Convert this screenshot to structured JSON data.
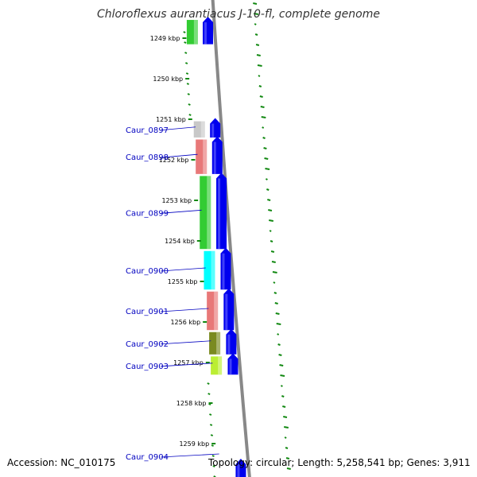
{
  "title": "Chloroflexus aurantiacus J-10-fl, complete genome",
  "accession_text": "Accession: NC_010175",
  "summary_text": "Topology: circular; Length: 5,258,541 bp; Genes: 3,911",
  "colors": {
    "forward_cds": "#0000ee",
    "backbone": "#888888",
    "tick": "#118811",
    "gene_label": "#0000c0",
    "cog_green": "#33cc33",
    "cog_gray": "#c8c8c8",
    "cog_salmon": "#e87878",
    "cog_cyan": "#00ffff",
    "cog_olive": "#7a8a20",
    "cog_yellowgreen": "#bbee33"
  },
  "ticks": [
    {
      "kbp": 1249,
      "label": "1249 kbp"
    },
    {
      "kbp": 1250,
      "label": "1250 kbp"
    },
    {
      "kbp": 1251,
      "label": "1251 kbp"
    },
    {
      "kbp": 1252,
      "label": "1252 kbp"
    },
    {
      "kbp": 1253,
      "label": "1253 kbp"
    },
    {
      "kbp": 1254,
      "label": "1254 kbp"
    },
    {
      "kbp": 1255,
      "label": "1255 kbp"
    },
    {
      "kbp": 1256,
      "label": "1256 kbp"
    },
    {
      "kbp": 1257,
      "label": "1257 kbp"
    },
    {
      "kbp": 1258,
      "label": "1258 kbp"
    },
    {
      "kbp": 1259,
      "label": "1259 kbp"
    }
  ],
  "genes": [
    {
      "label": "",
      "start_kbp": 1248.55,
      "end_kbp": 1249.15,
      "cog_color": "cog_green"
    },
    {
      "label": "Caur_0897",
      "start_kbp": 1251.05,
      "end_kbp": 1251.45,
      "cog_color": "cog_gray"
    },
    {
      "label": "Caur_0898",
      "start_kbp": 1251.5,
      "end_kbp": 1252.35,
      "cog_color": "cog_salmon"
    },
    {
      "label": "Caur_0899",
      "start_kbp": 1252.4,
      "end_kbp": 1254.2,
      "cog_color": "cog_green"
    },
    {
      "label": "Caur_0900",
      "start_kbp": 1254.25,
      "end_kbp": 1255.2,
      "cog_color": "cog_cyan"
    },
    {
      "label": "Caur_0901",
      "start_kbp": 1255.25,
      "end_kbp": 1256.2,
      "cog_color": "cog_salmon"
    },
    {
      "label": "Caur_0902",
      "start_kbp": 1256.25,
      "end_kbp": 1256.8,
      "cog_color": "cog_olive"
    },
    {
      "label": "Caur_0903",
      "start_kbp": 1256.85,
      "end_kbp": 1257.3,
      "cog_color": "cog_yellowgreen"
    },
    {
      "label": "Caur_0904",
      "start_kbp": 1259.45,
      "end_kbp": 1259.9,
      "cog_color": ""
    }
  ]
}
